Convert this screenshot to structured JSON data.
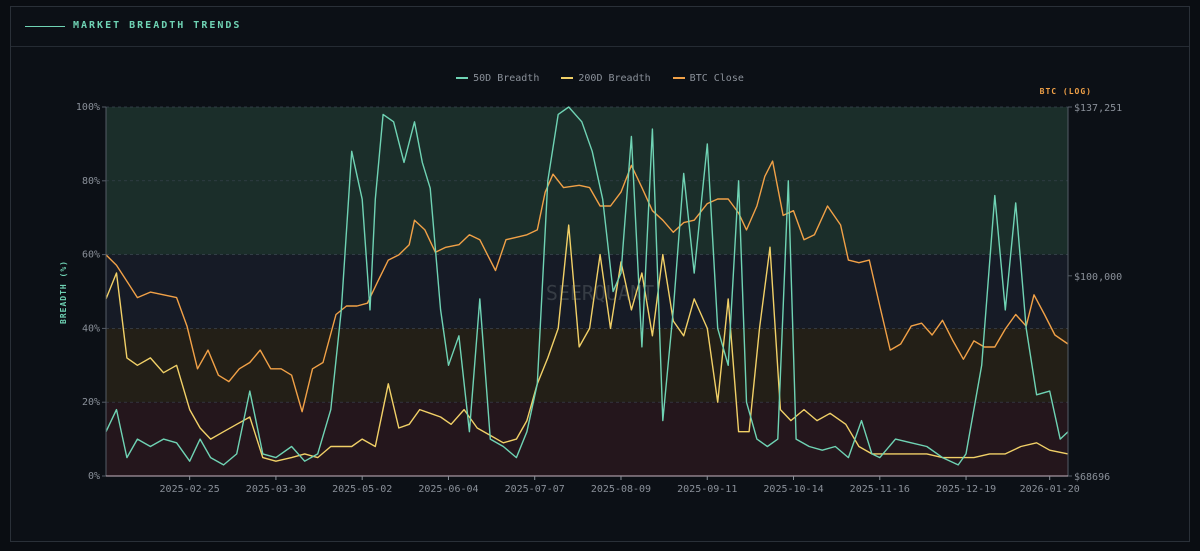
{
  "panel": {
    "title": "MARKET BREADTH TRENDS",
    "accent": "#6fd3b4"
  },
  "watermark": "SEERQUANT",
  "chart_data": {
    "type": "line",
    "title": "",
    "x_start": "2025-01-24",
    "x_end": "2026-01-27",
    "xticks": [
      "2025-02-25",
      "2025-03-30",
      "2025-05-02",
      "2025-06-04",
      "2025-07-07",
      "2025-08-09",
      "2025-09-11",
      "2025-10-14",
      "2025-11-16",
      "2025-12-19",
      "2026-01-20"
    ],
    "left_axis": {
      "label": "BREADTH (%)",
      "ticks": [
        0,
        20,
        40,
        60,
        80,
        100
      ],
      "tick_labels": [
        "0%",
        "20%",
        "40%",
        "60%",
        "80%",
        "100%"
      ],
      "range": [
        0,
        100
      ]
    },
    "right_axis": {
      "label": "BTC (LOG)",
      "scale": "log",
      "range": [
        68696,
        137251
      ],
      "tick_values": [
        137251,
        100000,
        68696
      ],
      "tick_labels": [
        "$137,251",
        "$100,000",
        "$68696"
      ]
    },
    "zones": [
      {
        "from": 60,
        "to": 100,
        "color": "#1b2e2a"
      },
      {
        "from": 40,
        "to": 60,
        "color": "#161b26"
      },
      {
        "from": 20,
        "to": 40,
        "color": "#231f17"
      },
      {
        "from": 0,
        "to": 20,
        "color": "#24161c"
      }
    ],
    "series": [
      {
        "name": "50D Breadth",
        "color": "#6fd3b4",
        "axis": "left",
        "points": [
          [
            "2025-01-24",
            12
          ],
          [
            "2025-01-28",
            18
          ],
          [
            "2025-02-01",
            5
          ],
          [
            "2025-02-05",
            10
          ],
          [
            "2025-02-10",
            8
          ],
          [
            "2025-02-15",
            10
          ],
          [
            "2025-02-20",
            9
          ],
          [
            "2025-02-25",
            4
          ],
          [
            "2025-03-01",
            10
          ],
          [
            "2025-03-05",
            5
          ],
          [
            "2025-03-10",
            3
          ],
          [
            "2025-03-15",
            6
          ],
          [
            "2025-03-20",
            23
          ],
          [
            "2025-03-25",
            6
          ],
          [
            "2025-03-30",
            5
          ],
          [
            "2025-04-05",
            8
          ],
          [
            "2025-04-10",
            4
          ],
          [
            "2025-04-15",
            6
          ],
          [
            "2025-04-20",
            18
          ],
          [
            "2025-04-24",
            45
          ],
          [
            "2025-04-28",
            88
          ],
          [
            "2025-05-02",
            75
          ],
          [
            "2025-05-05",
            45
          ],
          [
            "2025-05-07",
            75
          ],
          [
            "2025-05-10",
            98
          ],
          [
            "2025-05-14",
            96
          ],
          [
            "2025-05-18",
            85
          ],
          [
            "2025-05-22",
            96
          ],
          [
            "2025-05-25",
            85
          ],
          [
            "2025-05-28",
            78
          ],
          [
            "2025-06-01",
            45
          ],
          [
            "2025-06-04",
            30
          ],
          [
            "2025-06-08",
            38
          ],
          [
            "2025-06-12",
            12
          ],
          [
            "2025-06-16",
            48
          ],
          [
            "2025-06-20",
            10
          ],
          [
            "2025-06-25",
            8
          ],
          [
            "2025-06-30",
            5
          ],
          [
            "2025-07-04",
            12
          ],
          [
            "2025-07-08",
            25
          ],
          [
            "2025-07-12",
            80
          ],
          [
            "2025-07-16",
            98
          ],
          [
            "2025-07-20",
            100
          ],
          [
            "2025-07-25",
            96
          ],
          [
            "2025-07-29",
            88
          ],
          [
            "2025-08-02",
            75
          ],
          [
            "2025-08-06",
            50
          ],
          [
            "2025-08-09",
            55
          ],
          [
            "2025-08-13",
            92
          ],
          [
            "2025-08-17",
            35
          ],
          [
            "2025-08-21",
            94
          ],
          [
            "2025-08-25",
            15
          ],
          [
            "2025-08-29",
            45
          ],
          [
            "2025-09-02",
            82
          ],
          [
            "2025-09-06",
            55
          ],
          [
            "2025-09-11",
            90
          ],
          [
            "2025-09-15",
            40
          ],
          [
            "2025-09-19",
            30
          ],
          [
            "2025-09-23",
            80
          ],
          [
            "2025-09-26",
            20
          ],
          [
            "2025-09-30",
            10
          ],
          [
            "2025-10-04",
            8
          ],
          [
            "2025-10-08",
            10
          ],
          [
            "2025-10-12",
            80
          ],
          [
            "2025-10-15",
            10
          ],
          [
            "2025-10-20",
            8
          ],
          [
            "2025-10-25",
            7
          ],
          [
            "2025-10-30",
            8
          ],
          [
            "2025-11-04",
            5
          ],
          [
            "2025-11-09",
            15
          ],
          [
            "2025-11-13",
            6
          ],
          [
            "2025-11-16",
            5
          ],
          [
            "2025-11-22",
            10
          ],
          [
            "2025-11-28",
            9
          ],
          [
            "2025-12-04",
            8
          ],
          [
            "2025-12-10",
            5
          ],
          [
            "2025-12-16",
            3
          ],
          [
            "2025-12-19",
            6
          ],
          [
            "2025-12-25",
            30
          ],
          [
            "2025-12-30",
            76
          ],
          [
            "2026-01-03",
            45
          ],
          [
            "2026-01-07",
            74
          ],
          [
            "2026-01-11",
            40
          ],
          [
            "2026-01-15",
            22
          ],
          [
            "2026-01-20",
            23
          ],
          [
            "2026-01-24",
            10
          ],
          [
            "2026-01-27",
            12
          ]
        ]
      },
      {
        "name": "200D Breadth",
        "color": "#f1d067",
        "axis": "left",
        "points": [
          [
            "2025-01-24",
            48
          ],
          [
            "2025-01-28",
            55
          ],
          [
            "2025-02-01",
            32
          ],
          [
            "2025-02-05",
            30
          ],
          [
            "2025-02-10",
            32
          ],
          [
            "2025-02-15",
            28
          ],
          [
            "2025-02-20",
            30
          ],
          [
            "2025-02-25",
            18
          ],
          [
            "2025-03-01",
            13
          ],
          [
            "2025-03-05",
            10
          ],
          [
            "2025-03-10",
            12
          ],
          [
            "2025-03-15",
            14
          ],
          [
            "2025-03-20",
            16
          ],
          [
            "2025-03-25",
            5
          ],
          [
            "2025-03-30",
            4
          ],
          [
            "2025-04-05",
            5
          ],
          [
            "2025-04-10",
            6
          ],
          [
            "2025-04-15",
            5
          ],
          [
            "2025-04-20",
            8
          ],
          [
            "2025-04-28",
            8
          ],
          [
            "2025-05-02",
            10
          ],
          [
            "2025-05-07",
            8
          ],
          [
            "2025-05-12",
            25
          ],
          [
            "2025-05-16",
            13
          ],
          [
            "2025-05-20",
            14
          ],
          [
            "2025-05-24",
            18
          ],
          [
            "2025-05-28",
            17
          ],
          [
            "2025-06-01",
            16
          ],
          [
            "2025-06-05",
            14
          ],
          [
            "2025-06-10",
            18
          ],
          [
            "2025-06-15",
            13
          ],
          [
            "2025-06-20",
            11
          ],
          [
            "2025-06-25",
            9
          ],
          [
            "2025-06-30",
            10
          ],
          [
            "2025-07-04",
            15
          ],
          [
            "2025-07-08",
            25
          ],
          [
            "2025-07-12",
            32
          ],
          [
            "2025-07-16",
            40
          ],
          [
            "2025-07-20",
            68
          ],
          [
            "2025-07-24",
            35
          ],
          [
            "2025-07-28",
            40
          ],
          [
            "2025-08-01",
            60
          ],
          [
            "2025-08-05",
            40
          ],
          [
            "2025-08-09",
            58
          ],
          [
            "2025-08-13",
            45
          ],
          [
            "2025-08-17",
            55
          ],
          [
            "2025-08-21",
            38
          ],
          [
            "2025-08-25",
            60
          ],
          [
            "2025-08-29",
            42
          ],
          [
            "2025-09-02",
            38
          ],
          [
            "2025-09-06",
            48
          ],
          [
            "2025-09-11",
            40
          ],
          [
            "2025-09-15",
            20
          ],
          [
            "2025-09-19",
            48
          ],
          [
            "2025-09-23",
            12
          ],
          [
            "2025-09-27",
            12
          ],
          [
            "2025-10-01",
            40
          ],
          [
            "2025-10-05",
            62
          ],
          [
            "2025-10-09",
            18
          ],
          [
            "2025-10-13",
            15
          ],
          [
            "2025-10-18",
            18
          ],
          [
            "2025-10-23",
            15
          ],
          [
            "2025-10-28",
            17
          ],
          [
            "2025-11-03",
            14
          ],
          [
            "2025-11-08",
            8
          ],
          [
            "2025-11-13",
            6
          ],
          [
            "2025-11-16",
            6
          ],
          [
            "2025-11-22",
            6
          ],
          [
            "2025-11-28",
            6
          ],
          [
            "2025-12-04",
            6
          ],
          [
            "2025-12-10",
            5
          ],
          [
            "2025-12-16",
            5
          ],
          [
            "2025-12-22",
            5
          ],
          [
            "2025-12-28",
            6
          ],
          [
            "2026-01-03",
            6
          ],
          [
            "2026-01-09",
            8
          ],
          [
            "2026-01-15",
            9
          ],
          [
            "2026-01-20",
            7
          ],
          [
            "2026-01-27",
            6
          ]
        ]
      },
      {
        "name": "BTC Close",
        "color": "#f1a147",
        "axis": "right",
        "points": [
          [
            "2025-01-24",
            104000
          ],
          [
            "2025-01-28",
            102000
          ],
          [
            "2025-02-01",
            99000
          ],
          [
            "2025-02-05",
            96000
          ],
          [
            "2025-02-10",
            97000
          ],
          [
            "2025-02-15",
            96500
          ],
          [
            "2025-02-20",
            96000
          ],
          [
            "2025-02-24",
            91000
          ],
          [
            "2025-02-28",
            84000
          ],
          [
            "2025-03-04",
            87000
          ],
          [
            "2025-03-08",
            83000
          ],
          [
            "2025-03-12",
            82000
          ],
          [
            "2025-03-16",
            84000
          ],
          [
            "2025-03-20",
            85000
          ],
          [
            "2025-03-24",
            87000
          ],
          [
            "2025-03-28",
            84000
          ],
          [
            "2025-04-01",
            84000
          ],
          [
            "2025-04-05",
            83000
          ],
          [
            "2025-04-09",
            77500
          ],
          [
            "2025-04-13",
            84000
          ],
          [
            "2025-04-17",
            85000
          ],
          [
            "2025-04-22",
            93000
          ],
          [
            "2025-04-26",
            94500
          ],
          [
            "2025-04-30",
            94500
          ],
          [
            "2025-05-04",
            95000
          ],
          [
            "2025-05-08",
            99000
          ],
          [
            "2025-05-12",
            103000
          ],
          [
            "2025-05-16",
            104000
          ],
          [
            "2025-05-20",
            106000
          ],
          [
            "2025-05-22",
            111000
          ],
          [
            "2025-05-26",
            109000
          ],
          [
            "2025-05-30",
            104500
          ],
          [
            "2025-06-03",
            105500
          ],
          [
            "2025-06-08",
            106000
          ],
          [
            "2025-06-12",
            108000
          ],
          [
            "2025-06-16",
            107000
          ],
          [
            "2025-06-22",
            101000
          ],
          [
            "2025-06-26",
            107000
          ],
          [
            "2025-06-30",
            107500
          ],
          [
            "2025-07-04",
            108000
          ],
          [
            "2025-07-08",
            109000
          ],
          [
            "2025-07-11",
            117000
          ],
          [
            "2025-07-14",
            121000
          ],
          [
            "2025-07-18",
            118000
          ],
          [
            "2025-07-24",
            118500
          ],
          [
            "2025-07-28",
            118000
          ],
          [
            "2025-08-01",
            114000
          ],
          [
            "2025-08-05",
            114000
          ],
          [
            "2025-08-09",
            117000
          ],
          [
            "2025-08-13",
            123000
          ],
          [
            "2025-08-17",
            118000
          ],
          [
            "2025-08-21",
            113000
          ],
          [
            "2025-08-25",
            111000
          ],
          [
            "2025-08-29",
            108500
          ],
          [
            "2025-09-02",
            110500
          ],
          [
            "2025-09-06",
            111000
          ],
          [
            "2025-09-11",
            114500
          ],
          [
            "2025-09-15",
            115500
          ],
          [
            "2025-09-19",
            115500
          ],
          [
            "2025-09-23",
            112500
          ],
          [
            "2025-09-26",
            109000
          ],
          [
            "2025-09-30",
            114000
          ],
          [
            "2025-10-03",
            120500
          ],
          [
            "2025-10-06",
            124000
          ],
          [
            "2025-10-10",
            112000
          ],
          [
            "2025-10-14",
            113000
          ],
          [
            "2025-10-18",
            107000
          ],
          [
            "2025-10-22",
            108000
          ],
          [
            "2025-10-27",
            114000
          ],
          [
            "2025-11-01",
            110000
          ],
          [
            "2025-11-04",
            103000
          ],
          [
            "2025-11-08",
            102500
          ],
          [
            "2025-11-12",
            103000
          ],
          [
            "2025-11-16",
            94500
          ],
          [
            "2025-11-20",
            87000
          ],
          [
            "2025-11-24",
            88000
          ],
          [
            "2025-11-28",
            91000
          ],
          [
            "2025-12-02",
            91500
          ],
          [
            "2025-12-06",
            89500
          ],
          [
            "2025-12-10",
            92000
          ],
          [
            "2025-12-14",
            88500
          ],
          [
            "2025-12-18",
            85500
          ],
          [
            "2025-12-22",
            88500
          ],
          [
            "2025-12-26",
            87500
          ],
          [
            "2025-12-30",
            87500
          ],
          [
            "2026-01-03",
            90500
          ],
          [
            "2026-01-07",
            93000
          ],
          [
            "2026-01-11",
            91000
          ],
          [
            "2026-01-14",
            96500
          ],
          [
            "2026-01-18",
            93000
          ],
          [
            "2026-01-22",
            89500
          ],
          [
            "2026-01-27",
            88000
          ]
        ]
      }
    ]
  }
}
